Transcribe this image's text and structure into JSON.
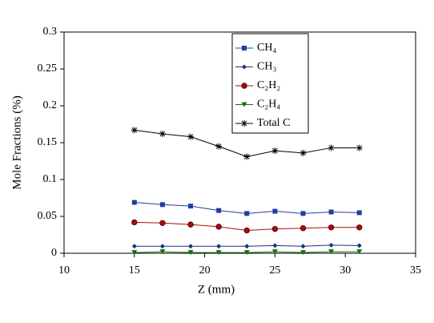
{
  "chart_data": {
    "type": "line",
    "xlabel": "Z (mm)",
    "ylabel": "Mole Fractions (%)",
    "x": [
      15,
      17,
      19,
      21,
      23,
      25,
      27,
      29,
      31
    ],
    "series": [
      {
        "name": "CH₄",
        "color": "#1f3f9f",
        "marker": "square",
        "values": [
          0.069,
          0.066,
          0.064,
          0.058,
          0.054,
          0.057,
          0.054,
          0.056,
          0.055
        ]
      },
      {
        "name": "CH₃",
        "color": "#1f2f7f",
        "marker": "diamond",
        "values": [
          0.0095,
          0.0095,
          0.0095,
          0.0095,
          0.0095,
          0.0105,
          0.0095,
          0.011,
          0.0105
        ]
      },
      {
        "name": "C₂H₂",
        "color": "#9f1010",
        "marker": "circle",
        "values": [
          0.042,
          0.041,
          0.039,
          0.036,
          0.031,
          0.033,
          0.034,
          0.035,
          0.035
        ]
      },
      {
        "name": "C₂H₄",
        "color": "#107010",
        "marker": "triangle-down",
        "values": [
          0.001,
          0.002,
          0.001,
          0.001,
          0.001,
          0.002,
          0.001,
          0.002,
          0.002
        ]
      },
      {
        "name": "Total C",
        "color": "#000000",
        "marker": "star",
        "values": [
          0.167,
          0.162,
          0.158,
          0.145,
          0.131,
          0.139,
          0.136,
          0.143,
          0.143
        ]
      }
    ],
    "xlim": [
      10,
      35
    ],
    "xticks": [
      10,
      15,
      20,
      25,
      30,
      35
    ],
    "ylim": [
      0,
      0.3
    ],
    "yticks": [
      0,
      0.05,
      0.1,
      0.15,
      0.2,
      0.25,
      0.3
    ],
    "grid": false,
    "legend": "top"
  }
}
